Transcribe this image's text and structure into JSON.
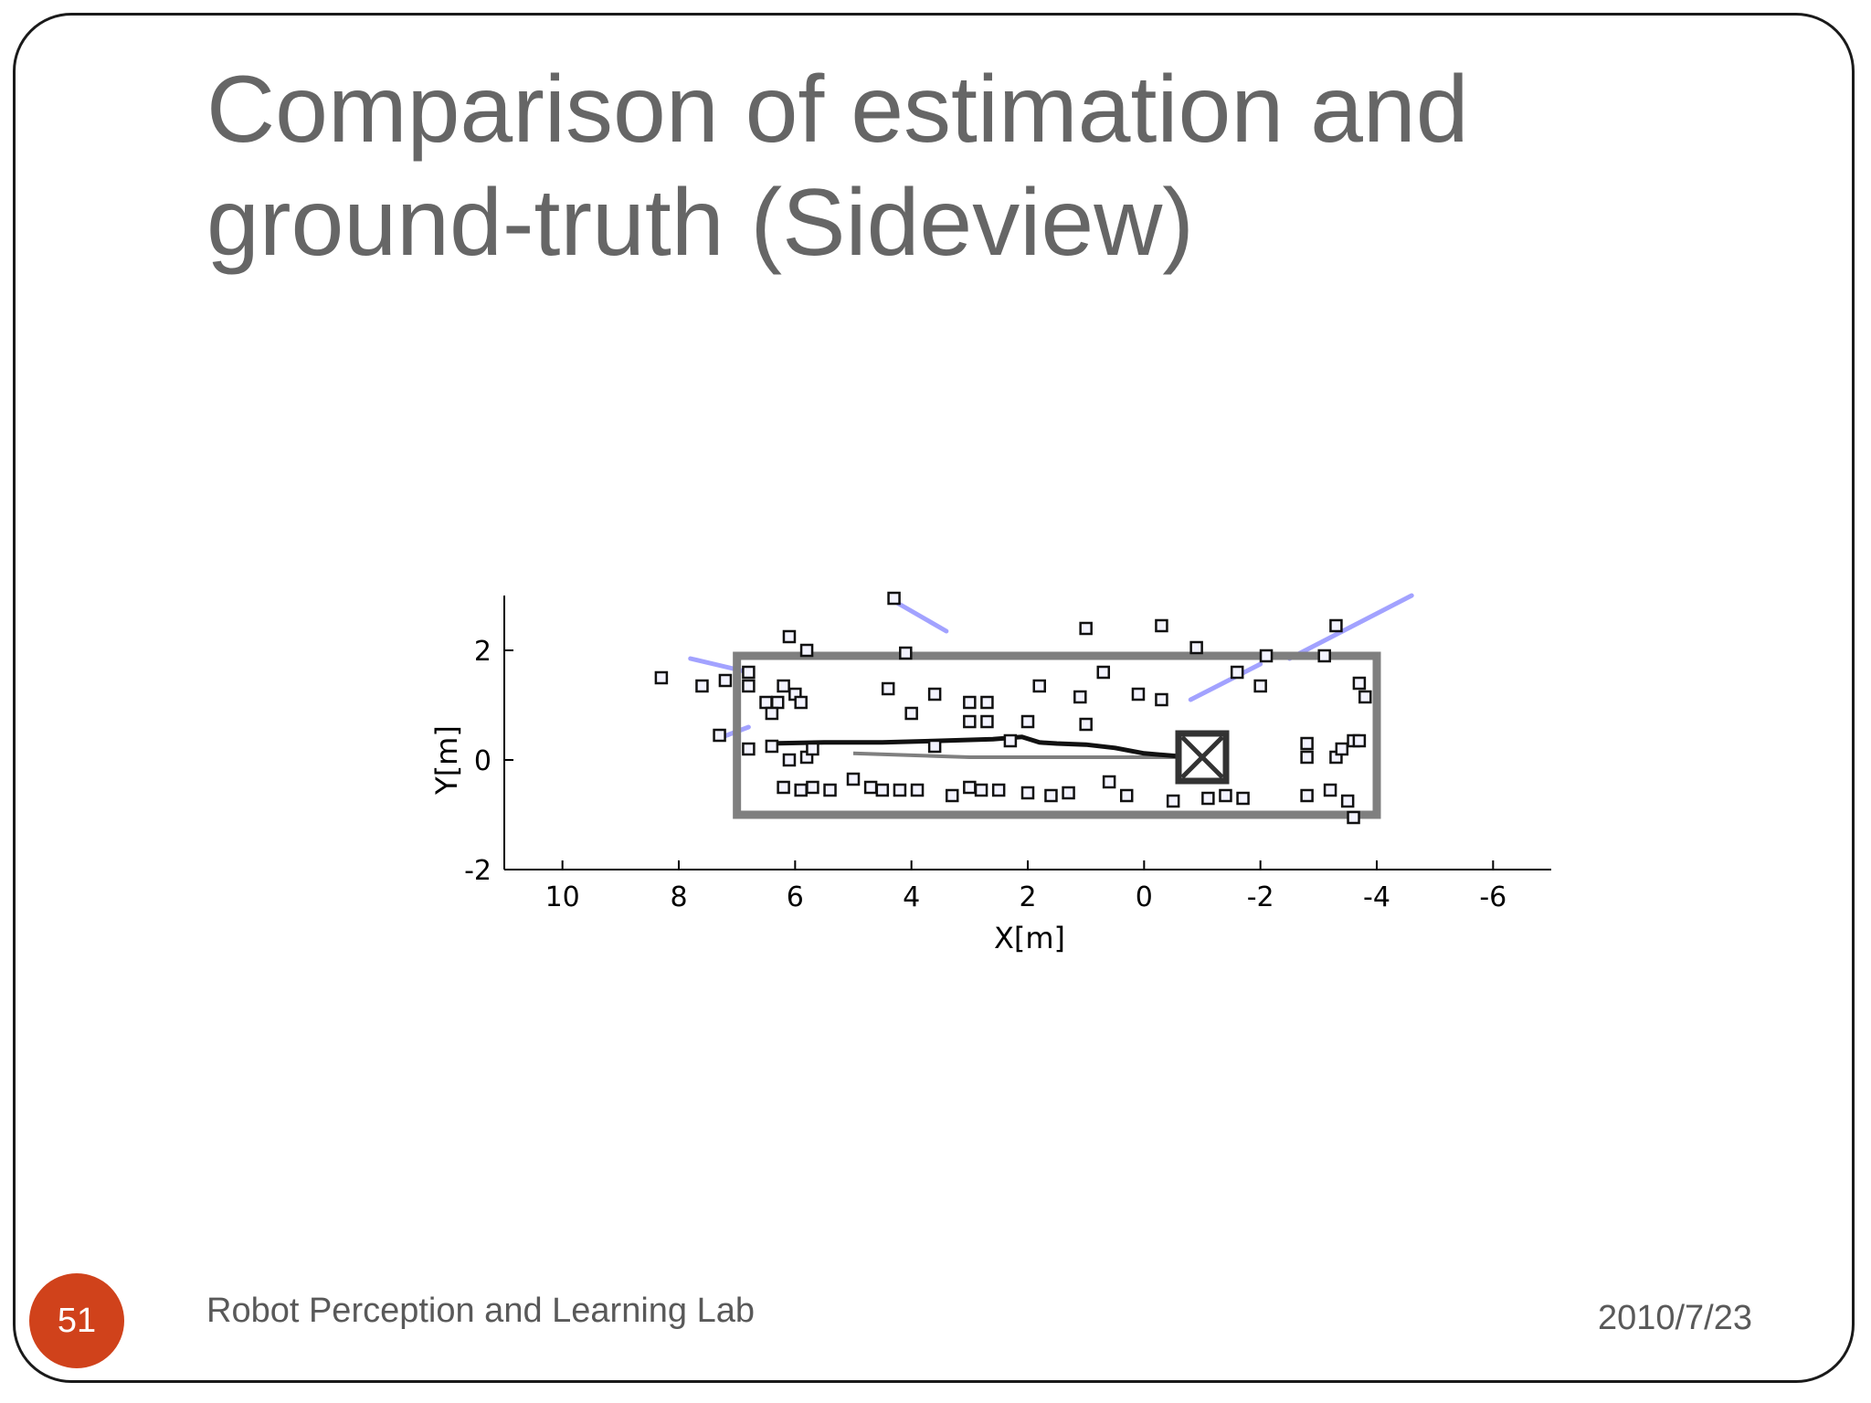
{
  "slide": {
    "title_lines": [
      "Comparison of estimation and",
      "ground-truth (Sideview)"
    ],
    "page_number": "51",
    "footer_text": "Robot Perception and Learning Lab",
    "date": "2010/7/23"
  },
  "colors": {
    "title": "#666666",
    "footer": "#595959",
    "badge": "#d0421b",
    "ground_truth": "#7f7f7f",
    "estimate": "#111111",
    "uncertainty": "#7a7aff"
  },
  "chart_data": {
    "type": "scatter",
    "title": "",
    "xlabel": "X[m]",
    "ylabel": "Y[m]",
    "xlim": [
      11,
      -7
    ],
    "ylim": [
      -2,
      3
    ],
    "x_reversed": true,
    "grid": false,
    "xticks": [
      10,
      8,
      6,
      4,
      2,
      0,
      -2,
      -4,
      -6
    ],
    "xtick_labels": [
      "10",
      "8",
      "6",
      "4",
      "2",
      "0",
      "-2",
      "-4",
      "-6"
    ],
    "yticks": [
      -2,
      0,
      2
    ],
    "ytick_labels": [
      "-2",
      "0",
      "2"
    ],
    "ground_truth_rect": {
      "x_min": -4,
      "x_max": 7,
      "y_min": -1,
      "y_max": 1.9
    },
    "estimated_trajectory": [
      [
        6.5,
        0.3
      ],
      [
        5.5,
        0.32
      ],
      [
        4.5,
        0.32
      ],
      [
        3.5,
        0.35
      ],
      [
        2.6,
        0.38
      ],
      [
        2.1,
        0.42
      ],
      [
        1.8,
        0.32
      ],
      [
        1.5,
        0.3
      ],
      [
        1.0,
        0.28
      ],
      [
        0.5,
        0.22
      ],
      [
        0.0,
        0.12
      ],
      [
        -0.8,
        0.05
      ]
    ],
    "ground_truth_trajectory": [
      [
        5.0,
        0.12
      ],
      [
        3.0,
        0.05
      ],
      [
        1.0,
        0.05
      ],
      [
        -0.8,
        0.05
      ]
    ],
    "robot_pose": {
      "x": -1.0,
      "y": 0.05
    },
    "uncertainty_segments": [
      [
        [
          4.3,
          2.9
        ],
        [
          3.4,
          2.35
        ]
      ],
      [
        [
          7.8,
          1.85
        ],
        [
          6.8,
          1.6
        ]
      ],
      [
        [
          -0.8,
          1.1
        ],
        [
          -2.0,
          1.75
        ]
      ],
      [
        [
          -2.5,
          1.85
        ],
        [
          -4.6,
          3.0
        ]
      ],
      [
        [
          7.3,
          0.4
        ],
        [
          6.8,
          0.6
        ]
      ]
    ],
    "landmarks": [
      [
        4.3,
        2.95
      ],
      [
        6.1,
        2.25
      ],
      [
        5.8,
        2.0
      ],
      [
        4.1,
        1.95
      ],
      [
        1.0,
        2.4
      ],
      [
        -0.3,
        2.45
      ],
      [
        -0.9,
        2.05
      ],
      [
        -2.1,
        1.9
      ],
      [
        -3.3,
        2.45
      ],
      [
        -3.1,
        1.9
      ],
      [
        8.3,
        1.5
      ],
      [
        7.6,
        1.35
      ],
      [
        7.2,
        1.45
      ],
      [
        6.8,
        1.6
      ],
      [
        6.8,
        1.35
      ],
      [
        6.2,
        1.35
      ],
      [
        6.0,
        1.2
      ],
      [
        5.9,
        1.05
      ],
      [
        4.4,
        1.3
      ],
      [
        3.6,
        1.2
      ],
      [
        3.0,
        1.05
      ],
      [
        2.7,
        1.05
      ],
      [
        1.8,
        1.35
      ],
      [
        1.1,
        1.15
      ],
      [
        0.7,
        1.6
      ],
      [
        0.1,
        1.2
      ],
      [
        -0.3,
        1.1
      ],
      [
        -1.6,
        1.6
      ],
      [
        -2.0,
        1.35
      ],
      [
        -3.7,
        1.4
      ],
      [
        -3.8,
        1.15
      ],
      [
        6.5,
        1.05
      ],
      [
        6.3,
        1.05
      ],
      [
        6.4,
        0.85
      ],
      [
        4.0,
        0.85
      ],
      [
        3.0,
        0.7
      ],
      [
        2.7,
        0.7
      ],
      [
        2.0,
        0.7
      ],
      [
        1.0,
        0.65
      ],
      [
        7.3,
        0.45
      ],
      [
        6.8,
        0.2
      ],
      [
        6.4,
        0.25
      ],
      [
        6.1,
        0.0
      ],
      [
        5.8,
        0.05
      ],
      [
        5.7,
        0.2
      ],
      [
        3.6,
        0.25
      ],
      [
        2.3,
        0.35
      ],
      [
        -2.8,
        0.3
      ],
      [
        -2.8,
        0.05
      ],
      [
        -3.3,
        0.05
      ],
      [
        -3.4,
        0.2
      ],
      [
        -3.6,
        0.35
      ],
      [
        -3.7,
        0.35
      ],
      [
        6.2,
        -0.5
      ],
      [
        5.9,
        -0.55
      ],
      [
        5.7,
        -0.5
      ],
      [
        5.4,
        -0.55
      ],
      [
        5.0,
        -0.35
      ],
      [
        4.7,
        -0.5
      ],
      [
        4.5,
        -0.55
      ],
      [
        4.2,
        -0.55
      ],
      [
        3.9,
        -0.55
      ],
      [
        3.3,
        -0.65
      ],
      [
        3.0,
        -0.5
      ],
      [
        2.8,
        -0.55
      ],
      [
        2.5,
        -0.55
      ],
      [
        2.0,
        -0.6
      ],
      [
        1.6,
        -0.65
      ],
      [
        1.3,
        -0.6
      ],
      [
        0.6,
        -0.4
      ],
      [
        0.3,
        -0.65
      ],
      [
        -0.5,
        -0.75
      ],
      [
        -1.1,
        -0.7
      ],
      [
        -1.4,
        -0.65
      ],
      [
        -1.7,
        -0.7
      ],
      [
        -2.8,
        -0.65
      ],
      [
        -3.2,
        -0.55
      ],
      [
        -3.5,
        -0.75
      ],
      [
        -3.6,
        -1.05
      ]
    ]
  }
}
